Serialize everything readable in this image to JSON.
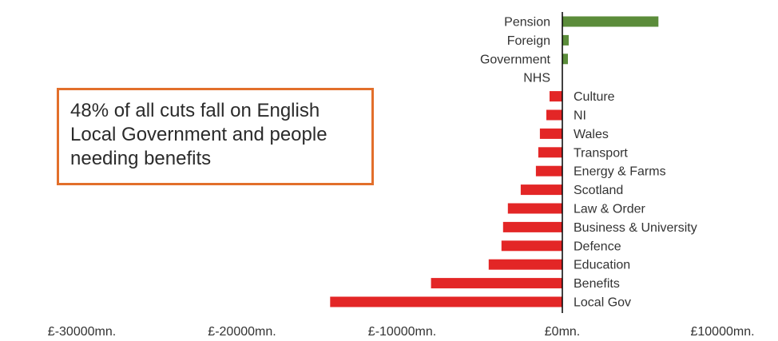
{
  "chart_data": {
    "type": "bar",
    "orientation": "horizontal",
    "categories": [
      "Pension",
      "Foreign",
      "Government",
      "NHS",
      "Culture",
      "NI",
      "Wales",
      "Transport",
      "Energy & Farms",
      "Scotland",
      "Law & Order",
      "Business & University",
      "Defence",
      "Education",
      "Benefits",
      "Local Gov"
    ],
    "values": [
      6000,
      400,
      350,
      0,
      -800,
      -1000,
      -1400,
      -1500,
      -1650,
      -2600,
      -3400,
      -3700,
      -3800,
      -4600,
      -8200,
      -14500
    ],
    "xlim": [
      -30000,
      10000
    ],
    "x_ticks": [
      -30000,
      -20000,
      -10000,
      0,
      10000
    ],
    "x_tick_labels": [
      "£-30000mn.",
      "£-20000mn.",
      "£-10000mn.",
      "£0mn.",
      "£10000mn."
    ],
    "colors": {
      "positive": "#5b8c3a",
      "negative": "#e32626",
      "axis": "#000000"
    },
    "legend": "none",
    "grid": false
  },
  "annotation": {
    "text": "48% of all cuts fall on English Local Government and people needing benefits",
    "border_color": "#e26f2b"
  }
}
